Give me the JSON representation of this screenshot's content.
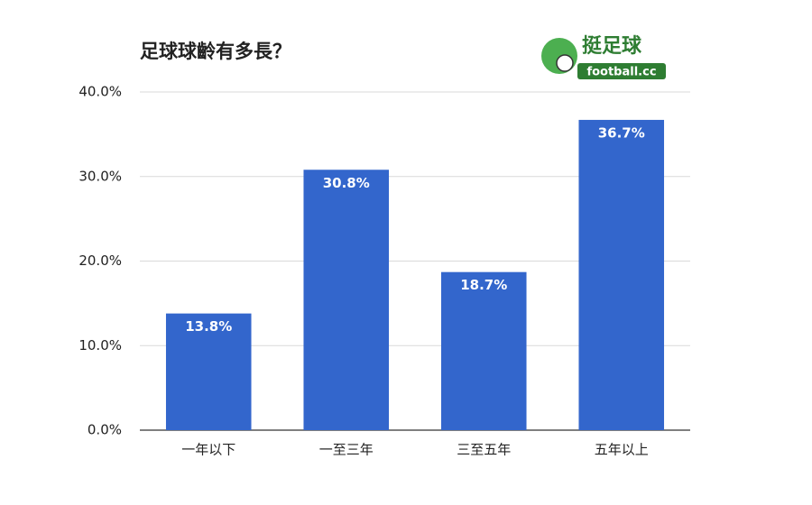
{
  "chart_data": {
    "type": "bar",
    "title": "足球球齡有多長？",
    "logo": {
      "name": "挺足球",
      "site": "football.cc"
    },
    "categories": [
      "一年以下",
      "一至三年",
      "三至五年",
      "五年以上"
    ],
    "values": [
      13.8,
      30.8,
      18.7,
      36.7
    ],
    "value_labels": [
      "13.8%",
      "30.8%",
      "18.7%",
      "36.7%"
    ],
    "color": "#3366cc",
    "ylim": [
      0,
      40
    ],
    "yticks": [
      {
        "value": 0,
        "label": "0.0%"
      },
      {
        "value": 10,
        "label": "10.0%"
      },
      {
        "value": 20,
        "label": "20.0%"
      },
      {
        "value": 30,
        "label": "30.0%"
      },
      {
        "value": 40,
        "label": "40.0%"
      }
    ],
    "grid": true
  }
}
